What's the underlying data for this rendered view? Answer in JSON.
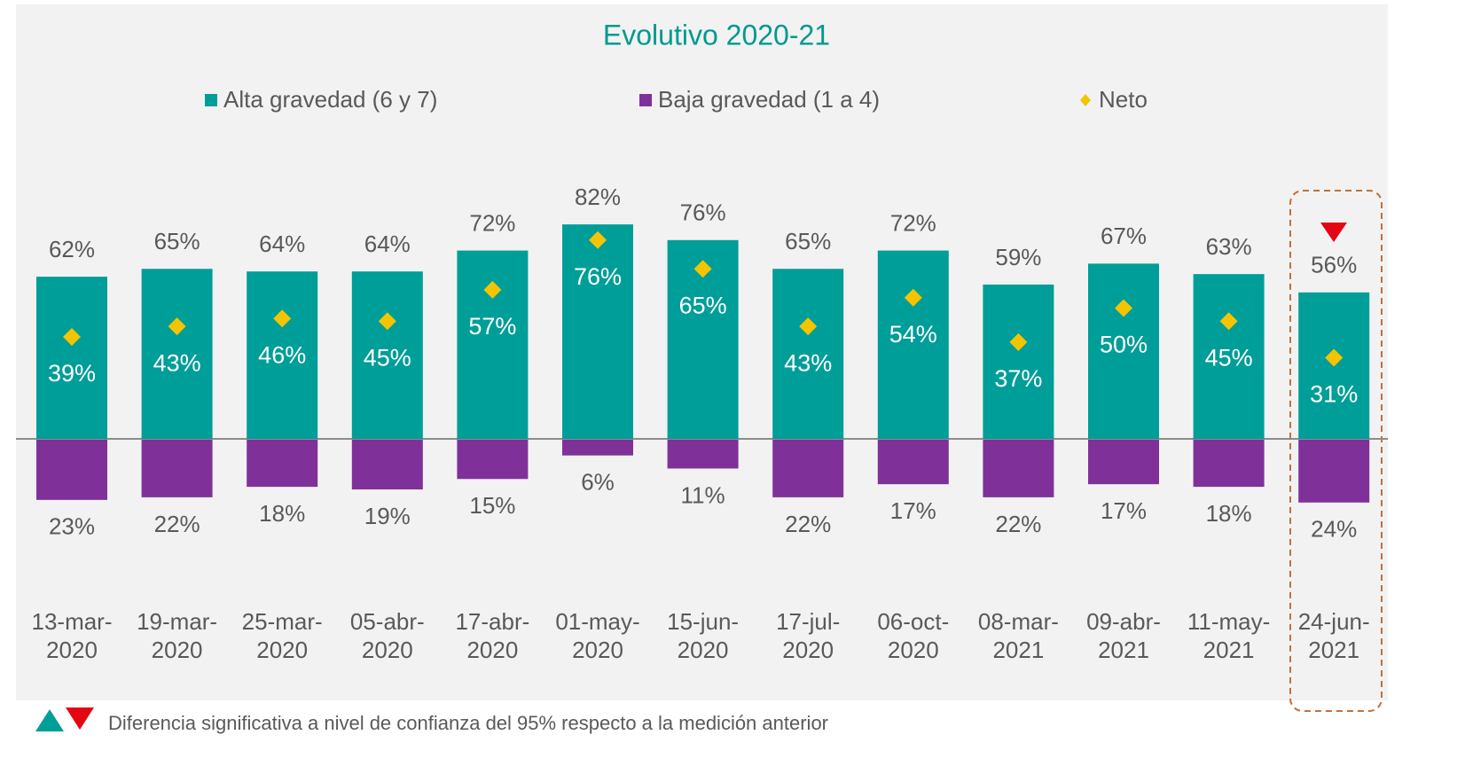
{
  "chart_data": {
    "type": "bar",
    "title": "Evolutivo 2020-21",
    "categories": [
      "13-mar-2020",
      "19-mar-2020",
      "25-mar-2020",
      "05-abr-2020",
      "17-abr-2020",
      "01-may-2020",
      "15-jun-2020",
      "17-jul-2020",
      "06-oct-2020",
      "08-mar-2021",
      "09-abr-2021",
      "11-may-2021",
      "24-jun-2021"
    ],
    "series": [
      {
        "name": "Alta gravedad (6 y 7)",
        "color": "#009e98",
        "values": [
          62,
          65,
          64,
          64,
          72,
          82,
          76,
          65,
          72,
          59,
          67,
          63,
          56
        ],
        "value_labels": [
          "62%",
          "65%",
          "64%",
          "64%",
          "72%",
          "82%",
          "76%",
          "65%",
          "72%",
          "59%",
          "67%",
          "63%",
          "56%"
        ]
      },
      {
        "name": "Baja gravedad (1 a 4)",
        "color": "#7f3199",
        "values": [
          23,
          22,
          18,
          19,
          15,
          6,
          11,
          22,
          17,
          22,
          17,
          18,
          24
        ],
        "value_labels": [
          "23%",
          "22%",
          "18%",
          "19%",
          "15%",
          "6%",
          "11%",
          "22%",
          "17%",
          "22%",
          "17%",
          "18%",
          "24%"
        ]
      },
      {
        "name": "Neto",
        "color": "#f5c400",
        "type": "scatter",
        "marker": "diamond",
        "values": [
          39,
          43,
          46,
          45,
          57,
          76,
          65,
          43,
          54,
          37,
          50,
          45,
          31
        ],
        "value_labels": [
          "39%",
          "43%",
          "46%",
          "45%",
          "57%",
          "76%",
          "65%",
          "43%",
          "54%",
          "37%",
          "50%",
          "45%",
          "31%"
        ]
      }
    ],
    "footnote": "Diferencia significativa a nivel de confianza del 95% respecto a la medición anterior"
  }
}
